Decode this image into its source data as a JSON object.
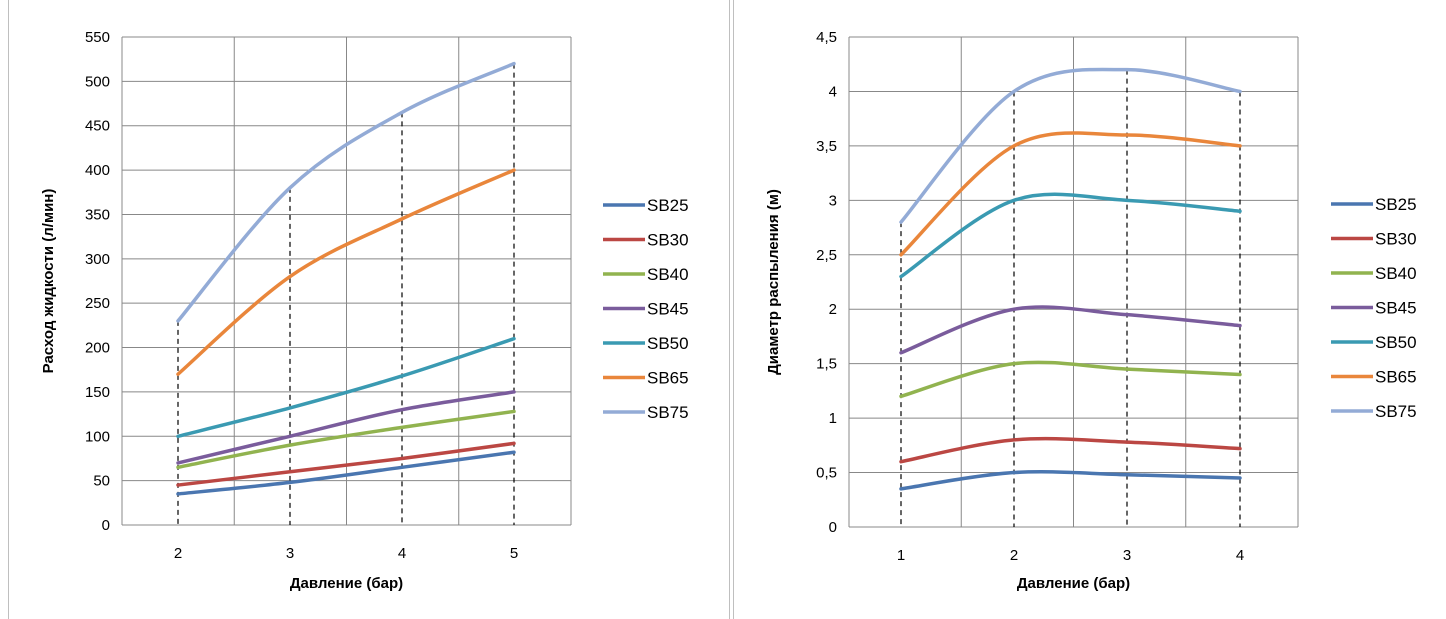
{
  "colors": {
    "SB25": "#4a76b0",
    "SB30": "#bb4743",
    "SB40": "#91b34f",
    "SB45": "#7a5c9c",
    "SB50": "#3a9ab2",
    "SB65": "#e9863b",
    "SB75": "#93abd6",
    "grid": "#888888"
  },
  "chart_data": [
    {
      "type": "line",
      "xlabel": "Давление (бар)",
      "ylabel": "Расход жидкости (л/мин)",
      "x": [
        2,
        3,
        4,
        5
      ],
      "xticks": [
        "2",
        "3",
        "4",
        "5"
      ],
      "ylim": [
        0,
        550
      ],
      "yticks": [
        "0",
        "50",
        "100",
        "150",
        "200",
        "250",
        "300",
        "350",
        "400",
        "450",
        "500",
        "550"
      ],
      "grid": true,
      "legend": "right",
      "series": [
        {
          "name": "SB25",
          "values": [
            35,
            48,
            65,
            82
          ]
        },
        {
          "name": "SB30",
          "values": [
            45,
            60,
            75,
            92
          ]
        },
        {
          "name": "SB40",
          "values": [
            65,
            90,
            110,
            128
          ]
        },
        {
          "name": "SB45",
          "values": [
            70,
            100,
            130,
            150
          ]
        },
        {
          "name": "SB50",
          "values": [
            100,
            132,
            168,
            210
          ]
        },
        {
          "name": "SB65",
          "values": [
            170,
            280,
            345,
            400
          ]
        },
        {
          "name": "SB75",
          "values": [
            230,
            380,
            465,
            520
          ]
        }
      ]
    },
    {
      "type": "line",
      "xlabel": "Давление (бар)",
      "ylabel": "Диаметр распыления (м)",
      "x": [
        1,
        2,
        3,
        4
      ],
      "xticks": [
        "1",
        "2",
        "3",
        "4"
      ],
      "ylim": [
        0,
        4.5
      ],
      "yticks": [
        "0",
        "0,5",
        "1",
        "1,5",
        "2",
        "2,5",
        "3",
        "3,5",
        "4",
        "4,5"
      ],
      "grid": true,
      "legend": "right",
      "series": [
        {
          "name": "SB25",
          "values": [
            0.35,
            0.5,
            0.48,
            0.45
          ]
        },
        {
          "name": "SB30",
          "values": [
            0.6,
            0.8,
            0.78,
            0.72
          ]
        },
        {
          "name": "SB40",
          "values": [
            1.2,
            1.5,
            1.45,
            1.4
          ]
        },
        {
          "name": "SB45",
          "values": [
            1.6,
            2.0,
            1.95,
            1.85
          ]
        },
        {
          "name": "SB50",
          "values": [
            2.3,
            3.0,
            3.0,
            2.9
          ]
        },
        {
          "name": "SB65",
          "values": [
            2.5,
            3.5,
            3.6,
            3.5
          ]
        },
        {
          "name": "SB75",
          "values": [
            2.8,
            4.0,
            4.2,
            4.0
          ]
        }
      ]
    }
  ]
}
